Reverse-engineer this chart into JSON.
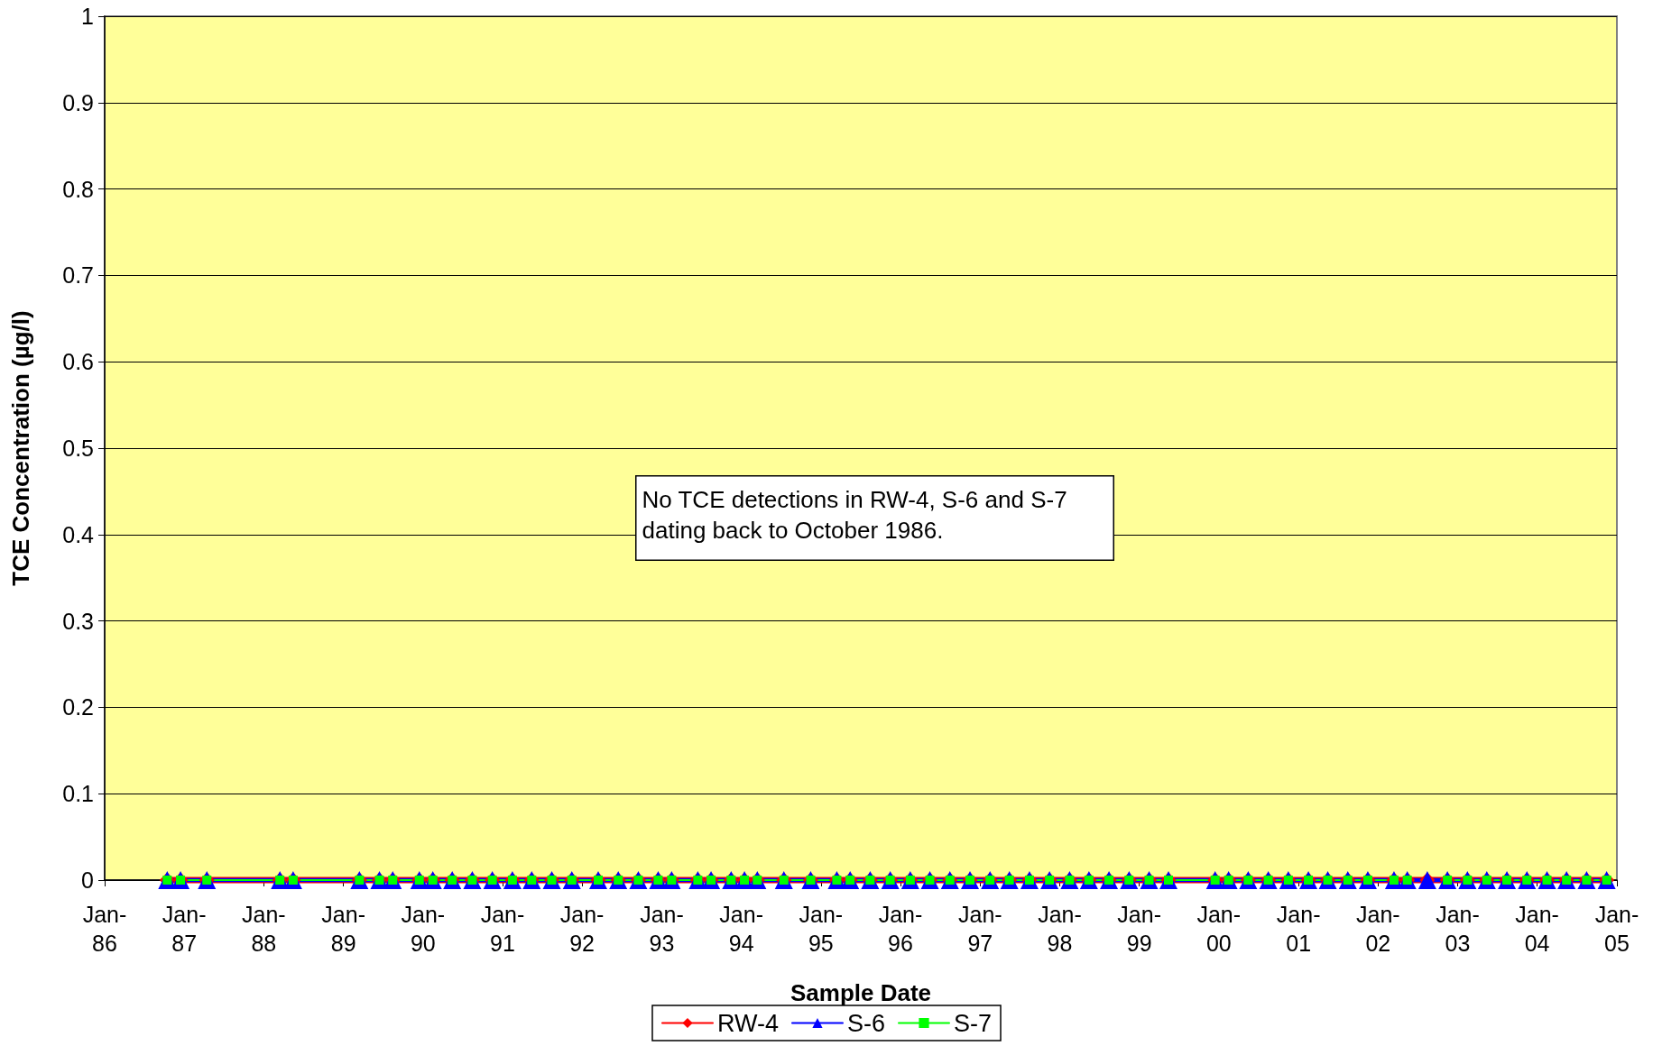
{
  "chart_data": {
    "type": "line",
    "xlabel": "Sample Date",
    "ylabel": "TCE Concentration (µg/l)",
    "annotations": [
      "No TCE detections in RW-4, S-6 and S-7 dating back to October 1986."
    ],
    "x": [
      "1986-10",
      "1986-12",
      "1987-04",
      "1988-03",
      "1988-05",
      "1989-03",
      "1989-06",
      "1989-08",
      "1989-12",
      "1990-02",
      "1990-05",
      "1990-08",
      "1990-11",
      "1991-02",
      "1991-05",
      "1991-08",
      "1991-11",
      "1992-03",
      "1992-06",
      "1992-09",
      "1992-12",
      "1993-02",
      "1993-06",
      "1993-08",
      "1993-11",
      "1994-01",
      "1994-03",
      "1994-07",
      "1994-11",
      "1995-03",
      "1995-05",
      "1995-08",
      "1995-11",
      "1996-02",
      "1996-05",
      "1996-08",
      "1996-11",
      "1997-02",
      "1997-05",
      "1997-08",
      "1997-11",
      "1998-02",
      "1998-05",
      "1998-08",
      "1998-11",
      "1999-02",
      "1999-05",
      "1999-12",
      "2000-02",
      "2000-05",
      "2000-08",
      "2000-11",
      "2001-02",
      "2001-05",
      "2001-08",
      "2001-11",
      "2002-03",
      "2002-05",
      "2002-08",
      "2002-11",
      "2003-02",
      "2003-05",
      "2003-08",
      "2003-11",
      "2004-02",
      "2004-05",
      "2004-08",
      "2004-11"
    ],
    "series": [
      {
        "name": "RW-4",
        "color": "#ff0000",
        "marker": "diamond",
        "values": [
          0,
          0,
          0,
          0,
          0,
          0,
          0,
          0,
          0,
          0,
          0,
          0,
          0,
          0,
          0,
          0,
          0,
          0,
          0,
          0,
          0,
          0,
          0,
          0,
          0,
          0,
          0,
          0,
          0,
          0,
          0,
          0,
          0,
          0,
          0,
          0,
          0,
          0,
          0,
          0,
          0,
          0,
          0,
          0,
          0,
          0,
          0,
          0,
          0,
          0,
          0,
          0,
          0,
          0,
          0,
          0,
          0,
          0,
          0,
          0,
          0,
          0,
          0,
          0,
          0,
          0,
          0,
          0
        ]
      },
      {
        "name": "S-6",
        "color": "#0000ff",
        "marker": "triangle",
        "values": [
          0,
          0,
          0,
          0,
          0,
          0,
          0,
          0,
          0,
          0,
          0,
          0,
          0,
          0,
          0,
          0,
          0,
          0,
          0,
          0,
          0,
          0,
          0,
          0,
          0,
          0,
          0,
          0,
          0,
          0,
          0,
          0,
          0,
          0,
          0,
          0,
          0,
          0,
          0,
          0,
          0,
          0,
          0,
          0,
          0,
          0,
          0,
          0,
          0,
          0,
          0,
          0,
          0,
          0,
          0,
          0,
          0,
          0,
          0,
          0,
          0,
          0,
          0,
          0,
          0,
          0,
          0,
          0
        ]
      },
      {
        "name": "S-7",
        "color": "#00ff00",
        "marker": "square",
        "values": [
          0,
          0,
          0,
          0,
          0,
          0,
          0,
          0,
          0,
          0,
          0,
          0,
          0,
          0,
          0,
          0,
          0,
          0,
          0,
          0,
          0,
          0,
          0,
          0,
          0,
          0,
          0,
          0,
          0,
          0,
          0,
          0,
          0,
          0,
          0,
          0,
          0,
          0,
          0,
          0,
          0,
          0,
          0,
          0,
          0,
          0,
          0,
          0,
          0,
          0,
          0,
          0,
          0,
          0,
          0,
          0,
          0,
          0,
          null,
          0,
          0,
          0,
          0,
          0,
          0,
          0,
          0,
          0
        ]
      }
    ],
    "xlim": [
      "1986-01",
      "2005-01"
    ],
    "xticks": [
      {
        "value": "1986-01",
        "label": "Jan-86"
      },
      {
        "value": "1987-01",
        "label": "Jan-87"
      },
      {
        "value": "1988-01",
        "label": "Jan-88"
      },
      {
        "value": "1989-01",
        "label": "Jan-89"
      },
      {
        "value": "1990-01",
        "label": "Jan-90"
      },
      {
        "value": "1991-01",
        "label": "Jan-91"
      },
      {
        "value": "1992-01",
        "label": "Jan-92"
      },
      {
        "value": "1993-01",
        "label": "Jan-93"
      },
      {
        "value": "1994-01",
        "label": "Jan-94"
      },
      {
        "value": "1995-01",
        "label": "Jan-95"
      },
      {
        "value": "1996-01",
        "label": "Jan-96"
      },
      {
        "value": "1997-01",
        "label": "Jan-97"
      },
      {
        "value": "1998-01",
        "label": "Jan-98"
      },
      {
        "value": "1999-01",
        "label": "Jan-99"
      },
      {
        "value": "2000-01",
        "label": "Jan-00"
      },
      {
        "value": "2001-01",
        "label": "Jan-01"
      },
      {
        "value": "2002-01",
        "label": "Jan-02"
      },
      {
        "value": "2003-01",
        "label": "Jan-03"
      },
      {
        "value": "2004-01",
        "label": "Jan-04"
      },
      {
        "value": "2005-01",
        "label": "Jan-05"
      }
    ],
    "ylim": [
      0,
      1
    ],
    "yticks": [
      0,
      0.1,
      0.2,
      0.3,
      0.4,
      0.5,
      0.6,
      0.7,
      0.8,
      0.9,
      1
    ],
    "grid": "y",
    "legend": "bottom",
    "line_style": "solid"
  }
}
